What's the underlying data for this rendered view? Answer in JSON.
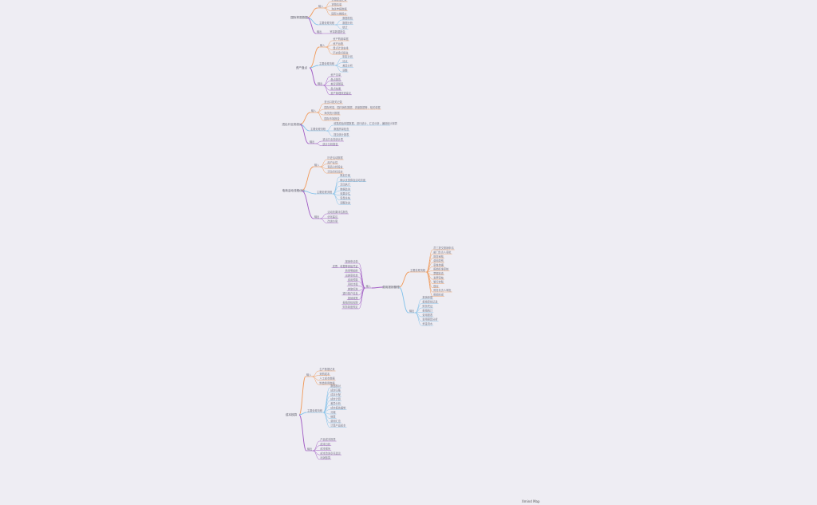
{
  "colors": {
    "background": "#eeedf3",
    "orange": "#f09a5a",
    "blue": "#7fc0ea",
    "purple": "#a05bc4"
  },
  "watermark": "Xmind Map",
  "maps": [
    {
      "root": "国际贸易数据",
      "branches": [
        {
          "label": "输入",
          "color": "orange",
          "leaves": [
            "贸易数据记录",
            "货物清单",
            "海关申报数据",
            "国际价格报价"
          ]
        },
        {
          "label": "主要处理流程",
          "color": "blue",
          "leaves": [
            "数据校验",
            "数据分析",
            "统计"
          ]
        },
        {
          "label": "输出",
          "color": "purple",
          "leaves": [
            "贸易数据报告"
          ]
        }
      ]
    },
    {
      "root": "资产盘点",
      "branches": [
        {
          "label": "输入",
          "color": "orange",
          "leaves": [
            "资产购置单据",
            "资产台账",
            "盘点计划安排",
            "历史盘点报告"
          ]
        },
        {
          "label": "主要处理流程",
          "color": "blue",
          "leaves": [
            "制定计划",
            "清点",
            "差异分析",
            "调整"
          ]
        },
        {
          "label": "输出",
          "color": "purple",
          "leaves": [
            "资产清单",
            "盘点报告",
            "差异调整表",
            "盘点结果",
            "资产管理改进建议"
          ]
        }
      ]
    },
    {
      "root": "进出口业务统计",
      "branches": [
        {
          "label": "输入",
          "color": "orange",
          "leaves": [
            "进出口报关记录",
            "国际贸易、国内销售数据、进度数据等，相关单据",
            "海关统计数据",
            "国际市场报告"
          ]
        },
        {
          "label": "主要处理流程",
          "color": "blue",
          "leaves": [
            "收集原始单据数据，进行统计、汇总分析，编制统计报表",
            "数据质量检查",
            "提交统计报表"
          ]
        },
        {
          "label": "输出",
          "color": "purple",
          "leaves": [
            "进出口业务统计表",
            "统计分析报告"
          ]
        }
      ]
    },
    {
      "root": "电商活动流程优化",
      "branches": [
        {
          "label": "输入",
          "color": "orange",
          "leaves": [
            "历史活动数据",
            "用户反馈",
            "竞品分析报告",
            "活动目标设定"
          ]
        },
        {
          "label": "主要处理流程",
          "color": "blue",
          "leaves": [
            "策划方案",
            "确认优惠券及活动页面",
            "活动执行",
            "数据监测",
            "效果评估",
            "复盘总结",
            "调整改进"
          ]
        },
        {
          "label": "输出",
          "color": "purple",
          "leaves": [
            "活动效果评估报告",
            "优化建议",
            "改进方案"
          ]
        }
      ]
    },
    {
      "root": "费用报销管理",
      "branches": [
        {
          "label": "主要处理流程",
          "color": "orange",
          "leaves": [
            "员工提交报销申请",
            "部门负责人审批",
            "财务审核",
            "费用类别",
            "审核单据",
            "报销标准审核",
            "票据检查",
            "发票审核",
            "银行转账",
            "核对",
            "财务负责人审批",
            "报销完成"
          ]
        },
        {
          "label": "输出",
          "color": "blue",
          "leaves": [
            "报销单据",
            "报销审批记录",
            "财务凭证",
            "报销统计",
            "费用报表",
            "费用预算分析",
            "资金流水"
          ]
        },
        {
          "label": "输入",
          "color": "purple",
          "leaves": [
            "报销申请单",
            "发票、收据等原始凭证",
            "费用明细单",
            "出差审批单",
            "费用预算",
            "审批流程",
            "差旅标准",
            "银行账户信息",
            "报销政策",
            "报销审批权限",
            "财务制度规定"
          ]
        }
      ]
    },
    {
      "root": "成本核算",
      "branches": [
        {
          "label": "输入",
          "color": "orange",
          "leaves": [
            "生产数据记录",
            "采购成本",
            "人工成本数据",
            "制造费用数据"
          ]
        },
        {
          "label": "主要处理流程",
          "color": "blue",
          "leaves": [
            "数据核对",
            "成本归集",
            "成本分配",
            "成本计算",
            "差异分析",
            "成本报告编制",
            "分摊",
            "核算",
            "费用汇总",
            "计算产品成本"
          ]
        },
        {
          "label": "输出",
          "color": "purple",
          "leaves": [
            "产品成本报表",
            "成本分析",
            "成本报告",
            "成本改进意见建议",
            "利润核算"
          ]
        }
      ]
    }
  ]
}
